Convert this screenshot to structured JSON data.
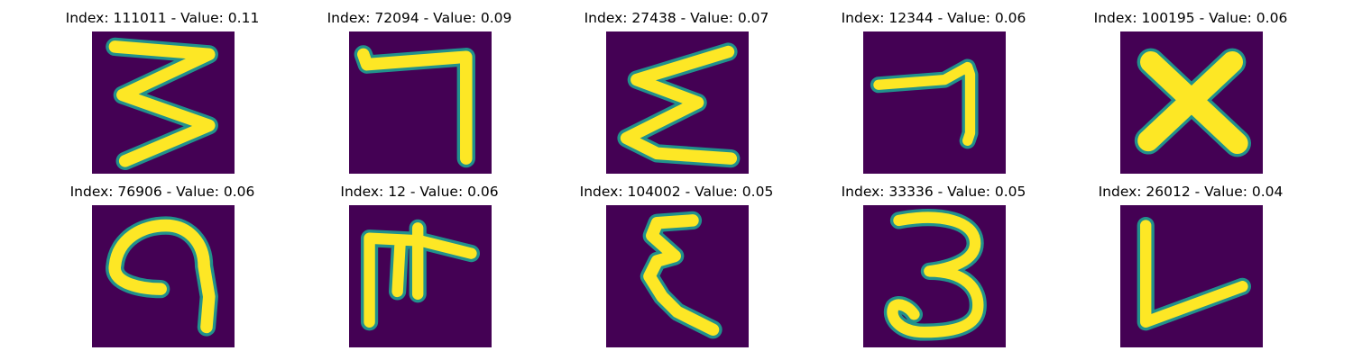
{
  "panels": [
    {
      "title": "Index: 111011 - Value: 0.11",
      "glyph": "zigzag-three"
    },
    {
      "title": "Index: 72094 - Value: 0.09",
      "glyph": "hook-seven"
    },
    {
      "title": "Index: 27438 - Value: 0.07",
      "glyph": "sigma-shape"
    },
    {
      "title": "Index: 12344 - Value: 0.06",
      "glyph": "short-seven"
    },
    {
      "title": "Index: 100195 - Value: 0.06",
      "glyph": "letter-x"
    },
    {
      "title": "Index: 76906 - Value: 0.06",
      "glyph": "curled-nine"
    },
    {
      "title": "Index: 12 - Value: 0.06",
      "glyph": "double-leg-bar"
    },
    {
      "title": "Index: 104002 - Value: 0.05",
      "glyph": "epsilon-shape"
    },
    {
      "title": "Index: 33336 - Value: 0.05",
      "glyph": "digit-three"
    },
    {
      "title": "Index: 26012 - Value: 0.04",
      "glyph": "letter-l-slant"
    }
  ],
  "colors": {
    "background": "#440154",
    "stroke": "#fde725",
    "edge": "#21918c"
  }
}
